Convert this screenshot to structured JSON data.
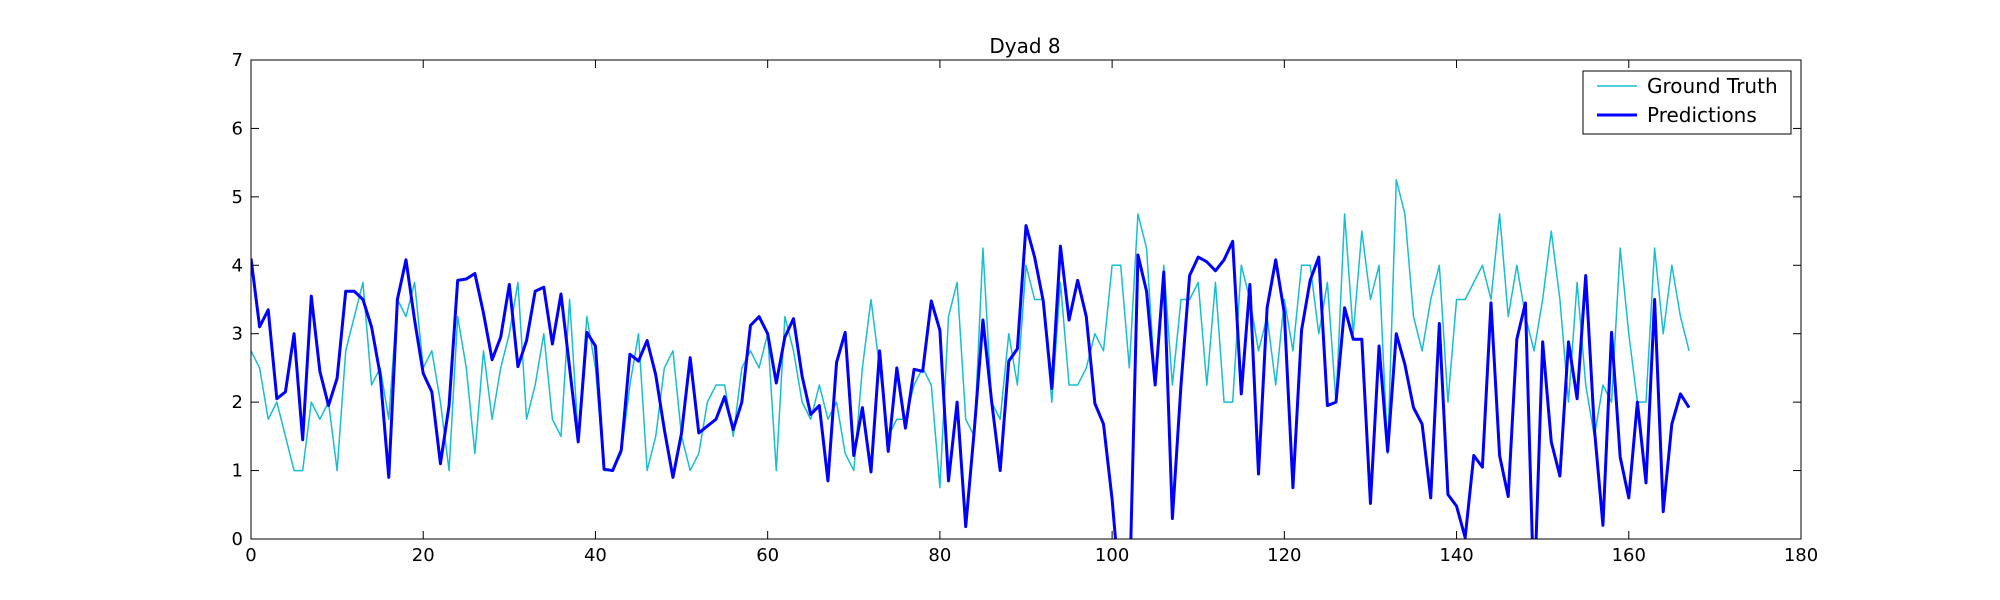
{
  "chart_data": {
    "type": "line",
    "title": "Dyad 8",
    "xlabel": "",
    "ylabel": "",
    "xlim": [
      0,
      180
    ],
    "ylim": [
      0,
      7
    ],
    "xticks": [
      0,
      20,
      40,
      60,
      80,
      100,
      120,
      140,
      160,
      180
    ],
    "yticks": [
      0,
      1,
      2,
      3,
      4,
      5,
      6,
      7
    ],
    "grid": false,
    "legend_position": "top-right",
    "series": [
      {
        "name": "Ground Truth",
        "color": "#17becf",
        "values": [
          2.75,
          2.5,
          1.75,
          2.0,
          1.5,
          1.0,
          1.0,
          2.0,
          1.75,
          2.0,
          1.0,
          2.75,
          3.25,
          3.75,
          2.25,
          2.5,
          1.75,
          3.5,
          3.25,
          3.75,
          2.5,
          2.75,
          2.0,
          1.0,
          3.25,
          2.5,
          1.25,
          2.75,
          1.75,
          2.5,
          3.0,
          3.75,
          1.75,
          2.25,
          3.0,
          1.75,
          1.5,
          3.5,
          1.5,
          3.25,
          2.5,
          1.0,
          1.0,
          1.25,
          2.25,
          3.0,
          1.0,
          1.5,
          2.5,
          2.75,
          1.5,
          1.0,
          1.25,
          2.0,
          2.25,
          2.25,
          1.5,
          2.5,
          2.75,
          2.5,
          3.0,
          1.0,
          3.25,
          2.75,
          2.0,
          1.75,
          2.25,
          1.75,
          2.0,
          1.25,
          1.0,
          2.5,
          3.5,
          2.5,
          1.5,
          1.75,
          1.75,
          2.25,
          2.5,
          2.25,
          0.75,
          3.25,
          3.75,
          1.75,
          1.5,
          4.25,
          2.0,
          1.75,
          3.0,
          2.25,
          4.0,
          3.5,
          3.5,
          2.0,
          3.75,
          2.25,
          2.25,
          2.5,
          3.0,
          2.75,
          4.0,
          4.0,
          2.5,
          4.75,
          4.25,
          2.25,
          4.0,
          2.25,
          3.5,
          3.5,
          3.75,
          2.25,
          3.75,
          2.0,
          2.0,
          4.0,
          3.5,
          2.75,
          3.25,
          2.25,
          3.5,
          2.75,
          4.0,
          4.0,
          3.0,
          3.75,
          2.0,
          4.75,
          3.0,
          4.5,
          3.5,
          4.0,
          1.25,
          5.25,
          4.75,
          3.25,
          2.75,
          3.5,
          4.0,
          2.0,
          3.5,
          3.5,
          3.75,
          4.0,
          3.5,
          4.75,
          3.25,
          4.0,
          3.25,
          2.75,
          3.5,
          4.5,
          3.5,
          2.0,
          3.75,
          2.25,
          1.5,
          2.25,
          2.0,
          4.25,
          3.0,
          2.0,
          2.0,
          4.25,
          3.0,
          4.0,
          3.25,
          2.75
        ]
      },
      {
        "name": "Predictions",
        "color": "#0000ff",
        "values": [
          4.1,
          3.1,
          3.35,
          2.05,
          2.15,
          3.0,
          1.45,
          3.55,
          2.45,
          1.95,
          2.35,
          3.62,
          3.62,
          3.5,
          3.1,
          2.4,
          0.9,
          3.5,
          4.08,
          3.2,
          2.42,
          2.15,
          1.1,
          1.95,
          3.78,
          3.8,
          3.88,
          3.3,
          2.62,
          2.95,
          3.72,
          2.52,
          2.9,
          3.62,
          3.68,
          2.85,
          3.58,
          2.5,
          1.42,
          3.02,
          2.82,
          1.02,
          1.0,
          1.3,
          2.7,
          2.6,
          2.9,
          2.4,
          1.6,
          0.9,
          1.55,
          2.65,
          1.55,
          1.65,
          1.75,
          2.08,
          1.6,
          2.0,
          3.12,
          3.25,
          3.0,
          2.28,
          2.95,
          3.22,
          2.38,
          1.82,
          1.95,
          0.85,
          2.58,
          3.02,
          1.22,
          1.92,
          0.98,
          2.75,
          1.28,
          2.5,
          1.62,
          2.48,
          2.45,
          3.48,
          3.05,
          0.85,
          2.0,
          0.18,
          1.6,
          3.2,
          2.02,
          1.0,
          2.6,
          2.78,
          4.58,
          4.12,
          3.48,
          2.2,
          4.28,
          3.2,
          3.78,
          3.25,
          1.98,
          1.68,
          0.58,
          -0.9,
          -0.9,
          4.15,
          3.62,
          2.25,
          3.9,
          0.3,
          2.25,
          3.85,
          4.12,
          4.05,
          3.92,
          4.08,
          4.35,
          2.12,
          3.72,
          0.95,
          3.38,
          4.08,
          3.3,
          0.75,
          3.05,
          3.78,
          4.12,
          1.95,
          2.0,
          3.38,
          2.92,
          2.92,
          0.52,
          2.82,
          1.28,
          3.0,
          2.55,
          1.92,
          1.68,
          0.6,
          3.15,
          0.65,
          0.48,
          0.02,
          1.22,
          1.05,
          3.45,
          1.22,
          0.62,
          2.92,
          3.45,
          -0.9,
          2.88,
          1.42,
          0.92,
          2.88,
          2.05,
          3.85,
          1.62,
          0.2,
          3.02,
          1.2,
          0.6,
          2.0,
          0.82,
          3.5,
          0.4,
          1.68,
          2.12,
          1.92
        ]
      }
    ]
  }
}
